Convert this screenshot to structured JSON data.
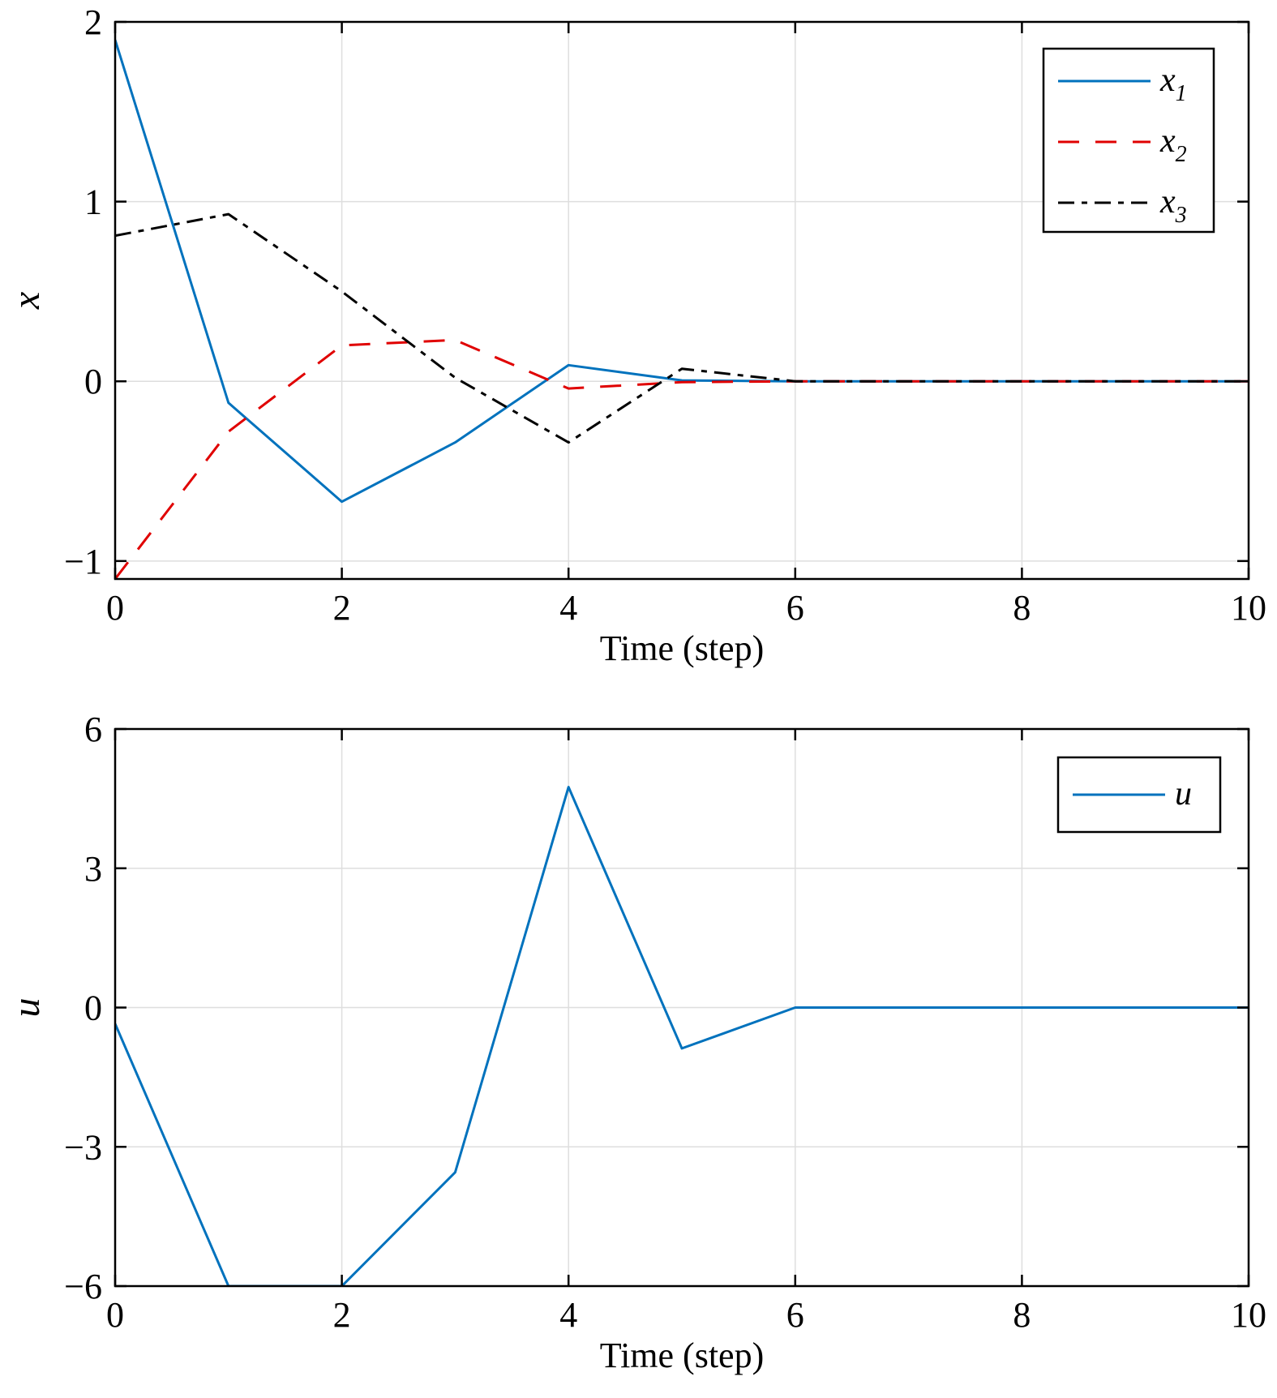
{
  "chart_data": [
    {
      "type": "line",
      "xlabel": "Time (step)",
      "ylabel": "x",
      "xlim": [
        0,
        10
      ],
      "ylim": [
        -1.1,
        2
      ],
      "xticks": [
        0,
        2,
        4,
        6,
        8,
        10
      ],
      "yticks": [
        -1,
        0,
        1,
        2
      ],
      "xtick_labels": [
        "0",
        "2",
        "4",
        "6",
        "8",
        "10"
      ],
      "ytick_labels": [
        "−1",
        "0",
        "1",
        "2"
      ],
      "grid": true,
      "legend_position": "top-right",
      "x": [
        0,
        1,
        2,
        3,
        4,
        5,
        6,
        7,
        8,
        9,
        10
      ],
      "series": [
        {
          "name": "x",
          "sub": "1",
          "color": "#0072bd",
          "dash": "solid",
          "values": [
            1.9,
            -0.12,
            -0.67,
            -0.34,
            0.09,
            0.005,
            0,
            0,
            0,
            0,
            0
          ]
        },
        {
          "name": "x",
          "sub": "2",
          "color": "#e00000",
          "dash": "dash",
          "values": [
            -1.1,
            -0.28,
            0.2,
            0.23,
            -0.04,
            -0.005,
            0,
            0,
            0,
            0,
            0
          ]
        },
        {
          "name": "x",
          "sub": "3",
          "color": "#000000",
          "dash": "dashdot",
          "values": [
            0.81,
            0.93,
            0.5,
            0.02,
            -0.34,
            0.07,
            0,
            0,
            0,
            0,
            0
          ]
        }
      ]
    },
    {
      "type": "line",
      "xlabel": "Time (step)",
      "ylabel": "u",
      "xlim": [
        0,
        10
      ],
      "ylim": [
        -6,
        6
      ],
      "xticks": [
        0,
        2,
        4,
        6,
        8,
        10
      ],
      "yticks": [
        -6,
        -3,
        0,
        3,
        6
      ],
      "xtick_labels": [
        "0",
        "2",
        "4",
        "6",
        "8",
        "10"
      ],
      "ytick_labels": [
        "−6",
        "−3",
        "0",
        "3",
        "6"
      ],
      "grid": true,
      "legend_position": "top-right",
      "x": [
        0,
        1,
        2,
        3,
        4,
        5,
        6,
        7,
        8,
        9,
        10
      ],
      "series": [
        {
          "name": "u",
          "sub": "",
          "color": "#0072bd",
          "dash": "solid",
          "values": [
            -0.35,
            -6,
            -6,
            -3.55,
            4.75,
            -0.88,
            0,
            0,
            0,
            0,
            0
          ]
        }
      ]
    }
  ]
}
